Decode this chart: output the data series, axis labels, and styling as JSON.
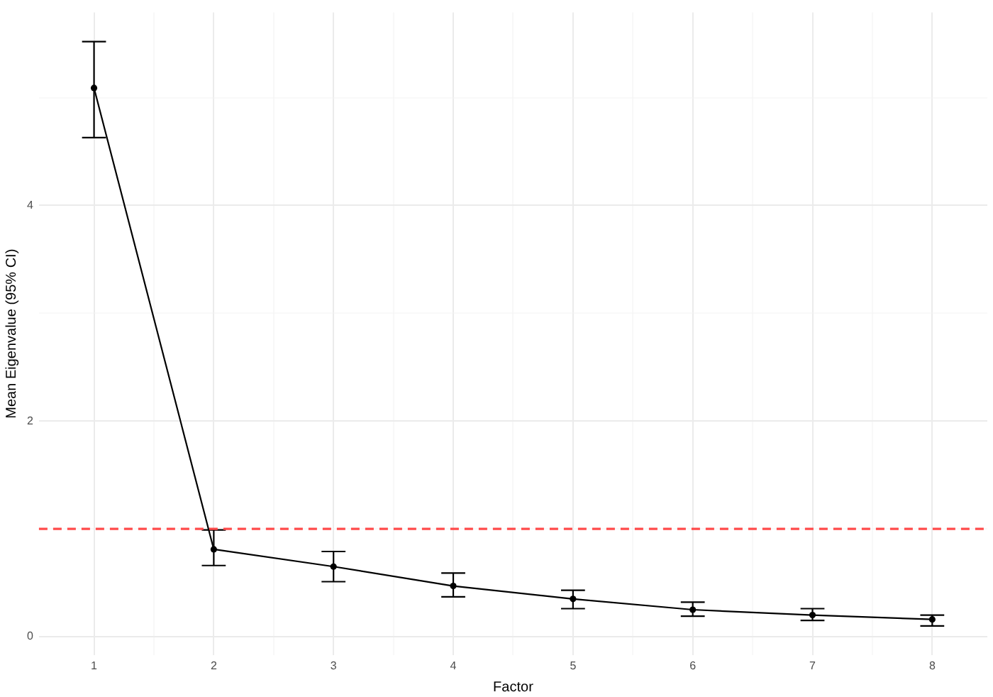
{
  "chart_data": {
    "type": "line",
    "xlabel": "Factor",
    "ylabel": "Mean Eigenvalue (95% CI)",
    "x": [
      1,
      2,
      3,
      4,
      5,
      6,
      7,
      8
    ],
    "values": [
      5.09,
      0.81,
      0.65,
      0.47,
      0.35,
      0.25,
      0.2,
      0.16
    ],
    "errors": [
      [
        4.63,
        5.52
      ],
      [
        0.66,
        0.99
      ],
      [
        0.51,
        0.79
      ],
      [
        0.37,
        0.59
      ],
      [
        0.26,
        0.43
      ],
      [
        0.19,
        0.32
      ],
      [
        0.15,
        0.26
      ],
      [
        0.1,
        0.2
      ]
    ],
    "color": "#000000",
    "marker": "circle",
    "line_style": "solid",
    "xlim": [
      0.54,
      8.46
    ],
    "ylim": [
      -0.17,
      5.79
    ],
    "xticks": [
      1,
      {
        "value": 1.5,
        "label": null
      },
      2,
      {
        "value": 2.5,
        "label": null
      },
      3,
      {
        "value": 3.5,
        "label": null
      },
      4,
      {
        "value": 4.5,
        "label": null
      },
      5,
      {
        "value": 5.5,
        "label": null
      },
      6,
      {
        "value": 6.5,
        "label": null
      },
      7,
      {
        "value": 7.5,
        "label": null
      },
      8
    ],
    "yticks": [
      0,
      {
        "value": 1,
        "label": null
      },
      2,
      {
        "value": 3,
        "label": null
      },
      4,
      {
        "value": 5,
        "label": null
      }
    ],
    "grid": true,
    "ref_lines": [
      {
        "axis": "y",
        "value": 1,
        "color": "#ff4a4a",
        "line_style": "dashed"
      }
    ]
  }
}
